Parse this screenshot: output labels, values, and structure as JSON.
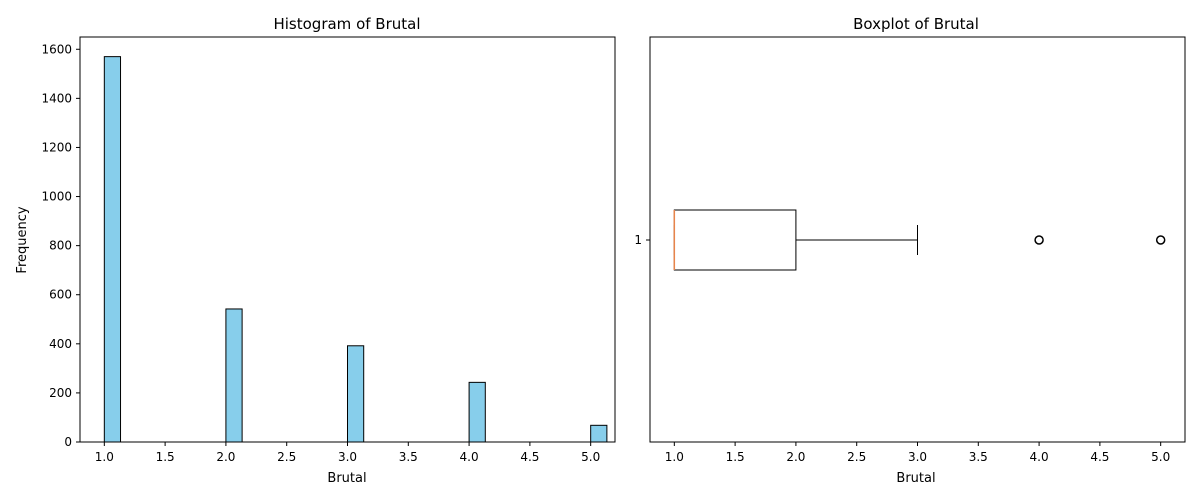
{
  "chart_data": [
    {
      "type": "bar",
      "title": "Histogram of Brutal",
      "xlabel": "Brutal",
      "ylabel": "Frequency",
      "xlim": [
        0.8,
        5.2
      ],
      "ylim": [
        0,
        1650
      ],
      "x_ticks": [
        "1.0",
        "1.5",
        "2.0",
        "2.5",
        "3.0",
        "3.5",
        "4.0",
        "4.5",
        "5.0"
      ],
      "y_ticks": [
        "0",
        "200",
        "400",
        "600",
        "800",
        "1000",
        "1200",
        "1400",
        "1600"
      ],
      "bin_width": 0.1333,
      "bars": [
        {
          "x": 1.0,
          "value": 1570
        },
        {
          "x": 2.0,
          "value": 542
        },
        {
          "x": 3.0,
          "value": 392
        },
        {
          "x": 4.0,
          "value": 243
        },
        {
          "x": 5.0,
          "value": 68
        }
      ],
      "fill_color": "#87ceeb",
      "edge_color": "#000000",
      "grid": false
    },
    {
      "type": "boxplot",
      "title": "Boxplot of Brutal",
      "xlabel": "Brutal",
      "xlim": [
        0.8,
        5.2
      ],
      "x_ticks": [
        "1.0",
        "1.5",
        "2.0",
        "2.5",
        "3.0",
        "3.5",
        "4.0",
        "4.5",
        "5.0"
      ],
      "y_ticks": [
        "1"
      ],
      "orientation": "horizontal",
      "box": {
        "min": 1.0,
        "q1": 1.0,
        "median": 1.0,
        "q3": 2.0,
        "max": 3.0
      },
      "outliers": [
        4.0,
        5.0
      ],
      "median_color": "#e8844a",
      "grid": false
    }
  ]
}
